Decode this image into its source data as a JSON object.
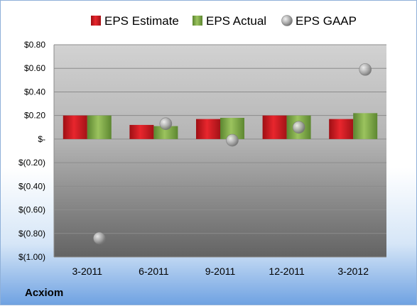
{
  "company": "Acxiom",
  "chart_data": {
    "type": "bar",
    "categories": [
      "3-2011",
      "6-2011",
      "9-2011",
      "12-2011",
      "3-2012"
    ],
    "series": [
      {
        "name": "EPS Estimate",
        "kind": "bar",
        "color": "#c8161d",
        "values": [
          0.2,
          0.12,
          0.17,
          0.2,
          0.17
        ]
      },
      {
        "name": "EPS Actual",
        "kind": "bar",
        "color": "#7aa641",
        "values": [
          0.2,
          0.11,
          0.18,
          0.2,
          0.22
        ]
      },
      {
        "name": "EPS GAAP",
        "kind": "marker",
        "color": "#a6a6a6",
        "values": [
          -0.84,
          0.13,
          -0.01,
          0.1,
          0.59
        ]
      }
    ],
    "yticks": [
      "$0.80",
      "$0.60",
      "$0.40",
      "$0.20",
      "$-",
      "$(0.20)",
      "$(0.40)",
      "$(0.60)",
      "$(0.80)",
      "$(1.00)"
    ],
    "ylim": [
      -1.0,
      0.8
    ],
    "grid": true,
    "legend_position": "top"
  }
}
